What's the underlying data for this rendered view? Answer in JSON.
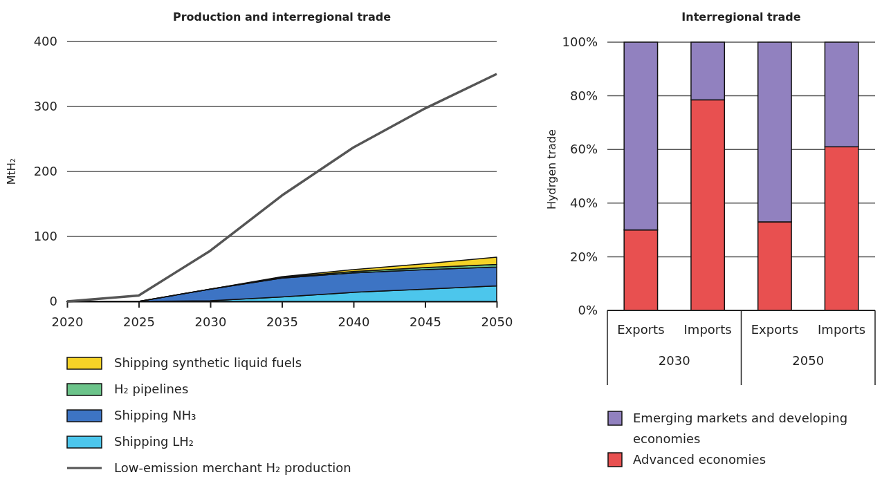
{
  "chart_data": [
    {
      "type": "area",
      "title": "Production and interregional trade",
      "ylabel": "MtH₂",
      "stacked": true,
      "x": [
        2020,
        2025,
        2030,
        2035,
        2040,
        2045,
        2050
      ],
      "xlim": [
        2020,
        2050
      ],
      "xticks": [
        2020,
        2025,
        2030,
        2035,
        2040,
        2045,
        2050
      ],
      "ylim": [
        0,
        400
      ],
      "yticks": [
        0,
        100,
        200,
        300,
        400
      ],
      "grid": "y",
      "legend": "bottom",
      "series": [
        {
          "name": "Shipping LH₂",
          "color": "#4cc6ec",
          "type": "area",
          "values": [
            0,
            0,
            1,
            7,
            14,
            19,
            24
          ]
        },
        {
          "name": "Shipping NH₃",
          "color": "#3d74c4",
          "type": "area",
          "values": [
            0,
            0,
            18,
            29,
            30,
            30,
            29
          ]
        },
        {
          "name": "H₂ pipelines",
          "color": "#6cc48a",
          "type": "area",
          "values": [
            0,
            0,
            0,
            1,
            2,
            3,
            4
          ]
        },
        {
          "name": "Shipping synthetic liquid fuels",
          "color": "#f5d327",
          "type": "area",
          "values": [
            0,
            0,
            0,
            1,
            3,
            6,
            11
          ]
        },
        {
          "name": "Low-emission merchant H₂ production",
          "color": "#555555",
          "type": "line",
          "values": [
            0,
            9,
            78,
            163,
            237,
            297,
            350
          ]
        }
      ]
    },
    {
      "type": "bar",
      "title": "Interregional trade",
      "ylabel": "Hydrgen trade",
      "stacked": true,
      "categories": [
        "Exports",
        "Imports",
        "Exports",
        "Imports"
      ],
      "annotations": [
        "2030",
        "2050"
      ],
      "ylim": [
        0,
        100
      ],
      "yticks": [
        {
          "value": 0,
          "label": "0%"
        },
        {
          "value": 20,
          "label": "20%"
        },
        {
          "value": 40,
          "label": "40%"
        },
        {
          "value": 60,
          "label": "60%"
        },
        {
          "value": 80,
          "label": "80%"
        },
        {
          "value": 100,
          "label": "100%"
        }
      ],
      "grid": "y",
      "legend": "bottom",
      "series": [
        {
          "name": "Advanced economies",
          "color": "#e85050",
          "values": [
            30,
            78.5,
            33,
            61
          ]
        },
        {
          "name": "Emerging markets and developing economies",
          "color": "#9181bf",
          "values": [
            70,
            21.5,
            67,
            39
          ]
        }
      ]
    }
  ]
}
